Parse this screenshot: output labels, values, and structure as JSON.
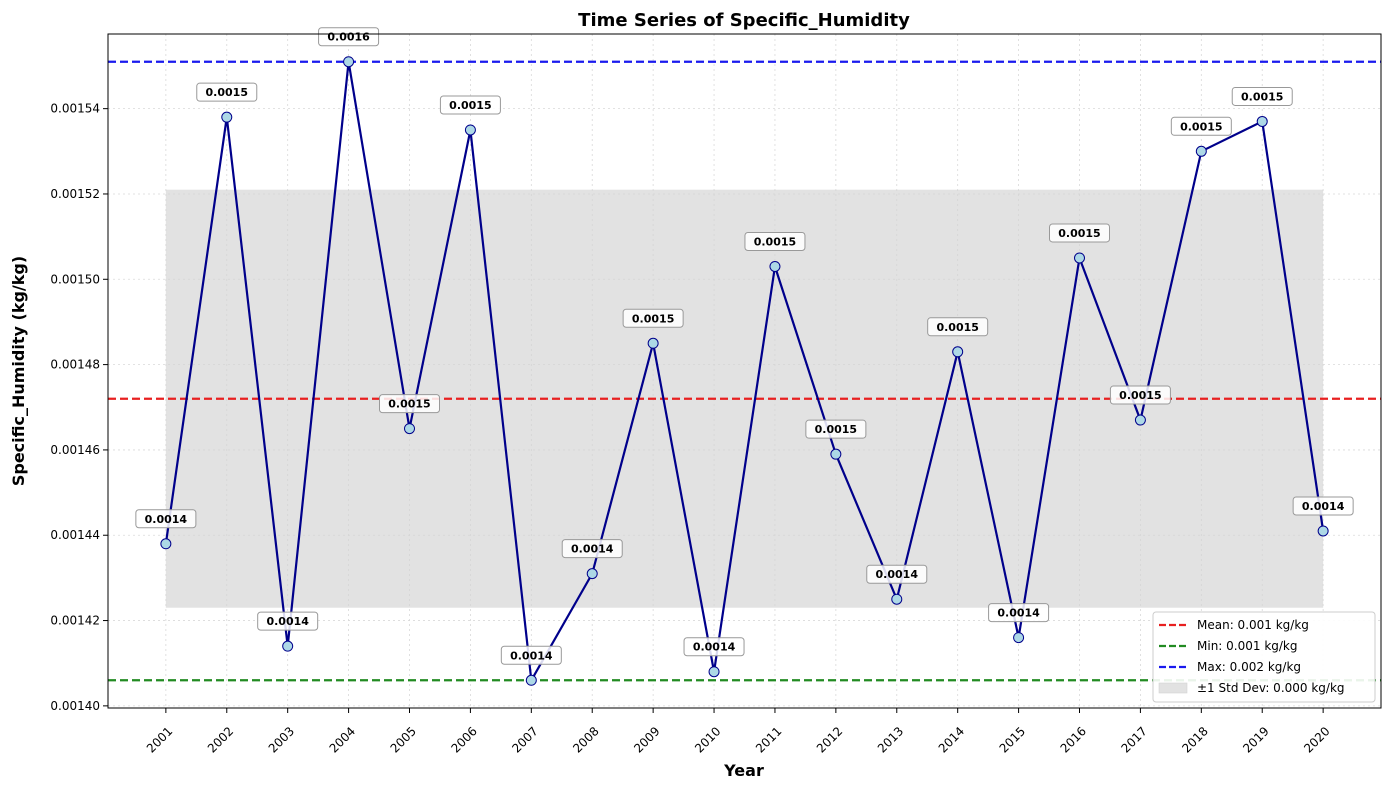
{
  "chart_data": {
    "type": "line",
    "title": "Time Series of Specific_Humidity",
    "xlabel": "Year",
    "ylabel": "Specific_Humidity (kg/kg)",
    "x": [
      2001,
      2002,
      2003,
      2004,
      2005,
      2006,
      2007,
      2008,
      2009,
      2010,
      2011,
      2012,
      2013,
      2014,
      2015,
      2016,
      2017,
      2018,
      2019,
      2020
    ],
    "x_tick_labels": [
      "2001",
      "2002",
      "2003",
      "2004",
      "2005",
      "2006",
      "2007",
      "2008",
      "2009",
      "2010",
      "2011",
      "2012",
      "2013",
      "2014",
      "2015",
      "2016",
      "2017",
      "2018",
      "2019",
      "2020"
    ],
    "series": [
      {
        "values": [
          0.001438,
          0.001538,
          0.001414,
          0.001551,
          0.001465,
          0.001535,
          0.001406,
          0.001431,
          0.001485,
          0.001408,
          0.001503,
          0.001459,
          0.001425,
          0.001483,
          0.001416,
          0.001505,
          0.001467,
          0.00153,
          0.001537,
          0.001441
        ],
        "point_labels": [
          "0.0014",
          "0.0015",
          "0.0014",
          "0.0016",
          "0.0015",
          "0.0015",
          "0.0014",
          "0.0014",
          "0.0015",
          "0.0014",
          "0.0015",
          "0.0015",
          "0.0014",
          "0.0015",
          "0.0014",
          "0.0015",
          "0.0015",
          "0.0015",
          "0.0015",
          "0.0014"
        ],
        "line_color": "#00008b",
        "marker_color": "#add8e6"
      }
    ],
    "reference_lines": [
      {
        "label": "Mean: 0.001 kg/kg",
        "value": 0.001472,
        "color": "#e82020"
      },
      {
        "label": "Min: 0.001 kg/kg",
        "value": 0.001406,
        "color": "#228b22"
      },
      {
        "label": "Max: 0.002 kg/kg",
        "value": 0.001551,
        "color": "#1a1aee"
      }
    ],
    "std_band": {
      "label": "±1 Std Dev: 0.000 kg/kg",
      "low": 0.001423,
      "high": 0.001521,
      "color": "#d3d3d3"
    },
    "y_ticks": [
      0.0014,
      0.00142,
      0.00144,
      0.00146,
      0.00148,
      0.0015,
      0.00152,
      0.00154
    ],
    "y_tick_labels": [
      "0.00140",
      "0.00142",
      "0.00144",
      "0.00146",
      "0.00148",
      "0.00150",
      "0.00152",
      "0.00154"
    ],
    "ylim": [
      0.0013995,
      0.0015575
    ],
    "xlim": [
      2000.05,
      2020.95
    ],
    "grid": true,
    "legend_position": "lower-right"
  }
}
